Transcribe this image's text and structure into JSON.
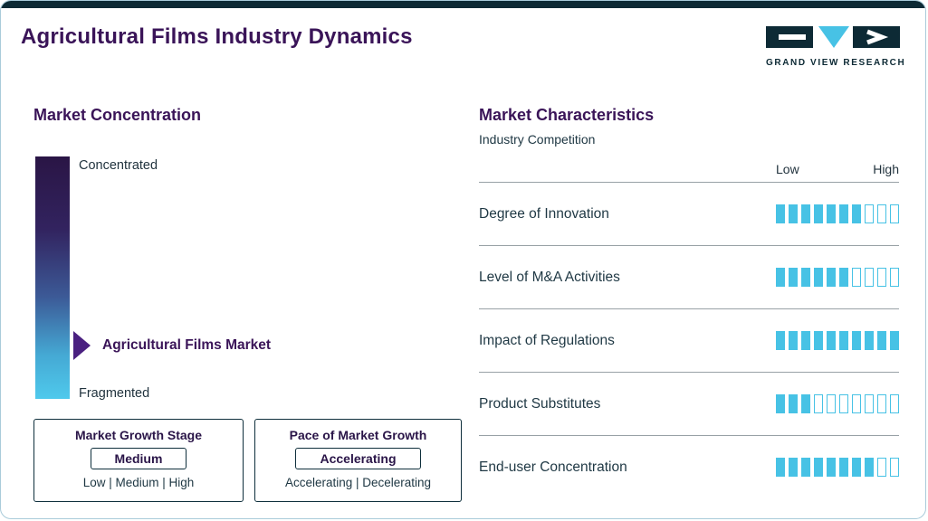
{
  "header": {
    "title": "Agricultural Films Industry Dynamics",
    "logo_text": "GRAND VIEW RESEARCH"
  },
  "market_concentration": {
    "heading": "Market Concentration",
    "top_label": "Concentrated",
    "bottom_label": "Fragmented",
    "marker_label": "Agricultural Films Market",
    "growth_stage_box": {
      "title": "Market Growth Stage",
      "value": "Medium",
      "options": "Low | Medium | High"
    },
    "pace_box": {
      "title": "Pace of Market Growth",
      "value": "Accelerating",
      "options": "Accelerating | Decelerating"
    }
  },
  "market_characteristics": {
    "heading": "Market Characteristics",
    "subheading": "Industry Competition",
    "scale_low": "Low",
    "scale_high": "High",
    "rows": [
      {
        "label": "Degree of Innovation",
        "filled": 7,
        "total": 10
      },
      {
        "label": "Level of M&A Activities",
        "filled": 6,
        "total": 10
      },
      {
        "label": "Impact of Regulations",
        "filled": 10,
        "total": 10
      },
      {
        "label": "Product Substitutes",
        "filled": 3,
        "total": 10
      },
      {
        "label": "End-user Concentration",
        "filled": 8,
        "total": 10
      }
    ]
  },
  "chart_data": {
    "type": "bar",
    "title": "Industry Competition",
    "categories": [
      "Degree of Innovation",
      "Level of M&A Activities",
      "Impact of Regulations",
      "Product Substitutes",
      "End-user Concentration"
    ],
    "values": [
      7,
      6,
      10,
      3,
      8
    ],
    "ylim": [
      0,
      10
    ],
    "xlabel": "Low",
    "ylabel": "High"
  },
  "colors": {
    "accent_cyan": "#47c2e5",
    "dark_navy": "#0d2a35",
    "purple_heading": "#3a1458",
    "marker_purple": "#4a2080",
    "gradient_top": "#2a1545",
    "gradient_bottom": "#4fc9ec"
  }
}
